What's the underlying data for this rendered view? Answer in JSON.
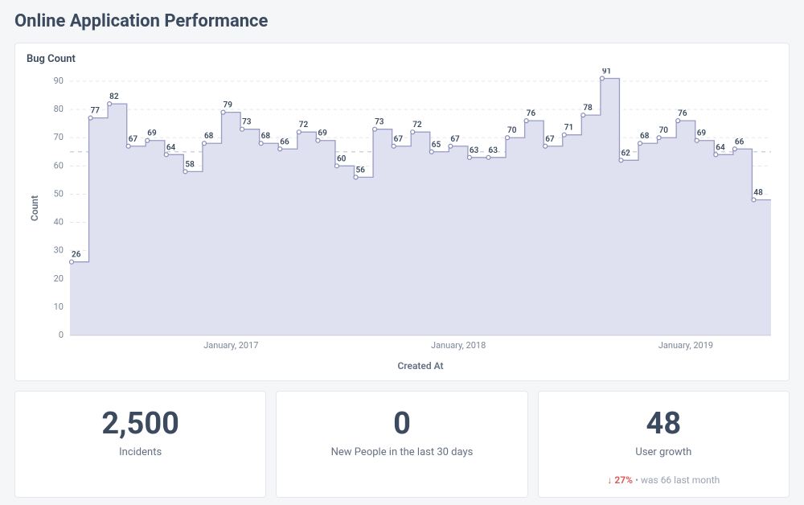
{
  "page": {
    "title": "Online Application Performance"
  },
  "chart": {
    "type": "step-area",
    "title": "Bug Count",
    "x_axis_title": "Created At",
    "y_axis_title": "Count",
    "ylim": [
      0,
      90
    ],
    "ytick_step": 10,
    "grid_color": "#e3e5ec",
    "ref_line_y": 65,
    "ref_line_color": "#cfd3df",
    "area_fill": "#dfe0f0",
    "line_color": "#9a9cc4",
    "line_width": 1.3,
    "marker_fill": "#ffffff",
    "marker_stroke": "#8a8cb8",
    "marker_radius": 2.5,
    "label_fontsize": 10,
    "label_color": "#3b4a5e",
    "values": [
      26,
      77,
      82,
      67,
      69,
      64,
      58,
      68,
      79,
      73,
      68,
      66,
      72,
      69,
      60,
      56,
      73,
      67,
      72,
      65,
      67,
      63,
      63,
      70,
      76,
      67,
      71,
      78,
      91,
      62,
      68,
      70,
      76,
      69,
      64,
      66,
      48
    ],
    "x_ticks": [
      {
        "idx": 8,
        "label": "January, 2017"
      },
      {
        "idx": 20,
        "label": "January, 2018"
      },
      {
        "idx": 32,
        "label": "January, 2019"
      }
    ],
    "background_color": "#ffffff"
  },
  "kpis": [
    {
      "value": "2,500",
      "label": "Incidents"
    },
    {
      "value": "0",
      "label": "New People in the last 30 days"
    },
    {
      "value": "48",
      "label": "User growth",
      "delta": {
        "arrow": "↓",
        "pct": "27%",
        "note_prefix": "•  was",
        "prev_value": "66",
        "note_suffix": "last month"
      }
    }
  ]
}
